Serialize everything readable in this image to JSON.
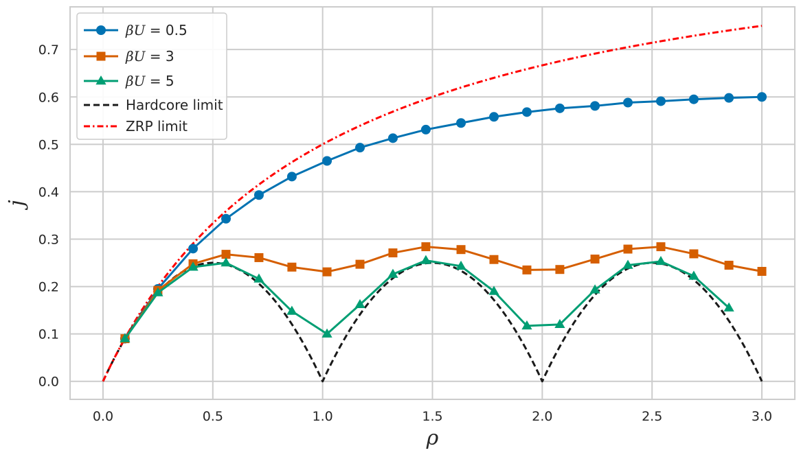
{
  "chart_data": {
    "type": "line",
    "title": "",
    "xlabel": "ρ",
    "ylabel": "j",
    "xlim": [
      -0.15,
      3.15
    ],
    "ylim": [
      -0.038,
      0.79
    ],
    "xticks": [
      0.0,
      0.5,
      1.0,
      1.5,
      2.0,
      2.5,
      3.0
    ],
    "xtick_labels": [
      "0.0",
      "0.5",
      "1.0",
      "1.5",
      "2.0",
      "2.5",
      "3.0"
    ],
    "yticks": [
      0.0,
      0.1,
      0.2,
      0.3,
      0.4,
      0.5,
      0.6,
      0.7
    ],
    "ytick_labels": [
      "0.0",
      "0.1",
      "0.2",
      "0.3",
      "0.4",
      "0.5",
      "0.6",
      "0.7"
    ],
    "grid": true,
    "legend_position": "top-left",
    "series": [
      {
        "name": "βU = 0.5",
        "legend_math": "βU",
        "legend_value": "= 0.5",
        "color": "#0072b2",
        "marker": "circle",
        "linestyle": "solid",
        "x": [
          0.1,
          0.25,
          0.41,
          0.56,
          0.71,
          0.86,
          1.02,
          1.17,
          1.32,
          1.47,
          1.63,
          1.78,
          1.93,
          2.08,
          2.24,
          2.39,
          2.54,
          2.69,
          2.85,
          3.0
        ],
        "y": [
          0.09,
          0.195,
          0.28,
          0.343,
          0.393,
          0.432,
          0.465,
          0.493,
          0.513,
          0.531,
          0.545,
          0.558,
          0.568,
          0.576,
          0.581,
          0.588,
          0.591,
          0.595,
          0.598,
          0.6
        ]
      },
      {
        "name": "βU = 3",
        "legend_math": "βU",
        "legend_value": "= 3",
        "color": "#d55e00",
        "marker": "square",
        "linestyle": "solid",
        "x": [
          0.1,
          0.25,
          0.41,
          0.56,
          0.71,
          0.86,
          1.02,
          1.17,
          1.32,
          1.47,
          1.63,
          1.78,
          1.93,
          2.08,
          2.24,
          2.39,
          2.54,
          2.69,
          2.85,
          3.0
        ],
        "y": [
          0.09,
          0.192,
          0.248,
          0.268,
          0.261,
          0.241,
          0.231,
          0.247,
          0.271,
          0.284,
          0.278,
          0.257,
          0.235,
          0.236,
          0.258,
          0.279,
          0.284,
          0.269,
          0.245,
          0.232
        ]
      },
      {
        "name": "βU = 5",
        "legend_math": "βU",
        "legend_value": "= 5",
        "color": "#009e73",
        "marker": "triangle",
        "linestyle": "solid",
        "x": [
          0.1,
          0.25,
          0.41,
          0.56,
          0.71,
          0.86,
          1.02,
          1.17,
          1.32,
          1.47,
          1.63,
          1.78,
          1.93,
          2.08,
          2.24,
          2.39,
          2.54,
          2.69,
          2.85
        ],
        "y": [
          0.09,
          0.187,
          0.241,
          0.25,
          0.216,
          0.148,
          0.1,
          0.162,
          0.226,
          0.255,
          0.243,
          0.19,
          0.117,
          0.12,
          0.193,
          0.245,
          0.253,
          0.222,
          0.155
        ]
      },
      {
        "name": "Hardcore limit",
        "color": "#1a1a1a",
        "marker": "none",
        "linestyle": "dashed",
        "function": "(rho - floor(rho)) * (1 - (rho - floor(rho)))",
        "x_range": [
          0.0,
          3.0
        ]
      },
      {
        "name": "ZRP limit",
        "color": "#ff0000",
        "marker": "none",
        "linestyle": "dashdot",
        "function": "rho / (1 + rho)",
        "x_range": [
          0.0,
          3.0
        ]
      }
    ]
  }
}
